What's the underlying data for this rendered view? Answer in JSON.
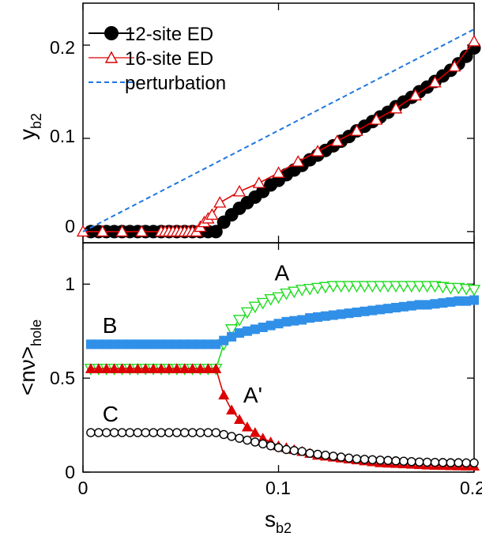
{
  "chart_data": [
    {
      "type": "line",
      "panel": "top",
      "ylabel": {
        "main": "y",
        "sub": "b2"
      },
      "xlim": [
        0,
        0.2
      ],
      "ylim": [
        -0.012,
        0.245
      ],
      "xticks": [
        0,
        0.1,
        0.2
      ],
      "yticks": [
        0,
        0.1,
        0.2
      ],
      "yticklabels": [
        "0",
        "0.1",
        "0.2"
      ],
      "legend_position": "top-left",
      "series": [
        {
          "name": "12-site ED",
          "color": "#000000",
          "marker": "filled-circle",
          "x": [
            0.004,
            0.008,
            0.012,
            0.016,
            0.02,
            0.024,
            0.028,
            0.032,
            0.036,
            0.04,
            0.044,
            0.048,
            0.052,
            0.056,
            0.06,
            0.064,
            0.068,
            0.072,
            0.076,
            0.08,
            0.084,
            0.088,
            0.092,
            0.096,
            0.1,
            0.104,
            0.108,
            0.112,
            0.116,
            0.12,
            0.124,
            0.128,
            0.132,
            0.136,
            0.14,
            0.144,
            0.148,
            0.152,
            0.156,
            0.16,
            0.164,
            0.168,
            0.172,
            0.176,
            0.18,
            0.184,
            0.188,
            0.192,
            0.196,
            0.2
          ],
          "y": [
            0.0,
            0.0,
            0.0,
            0.0,
            0.0,
            0.0,
            0.0,
            0.0,
            0.0,
            0.0,
            0.0,
            0.0,
            0.0,
            0.0,
            0.0,
            0.0,
            0.0,
            0.01,
            0.018,
            0.025,
            0.031,
            0.037,
            0.043,
            0.05,
            0.055,
            0.061,
            0.066,
            0.071,
            0.077,
            0.082,
            0.087,
            0.092,
            0.097,
            0.102,
            0.108,
            0.113,
            0.118,
            0.123,
            0.128,
            0.134,
            0.139,
            0.144,
            0.15,
            0.155,
            0.161,
            0.167,
            0.173,
            0.18,
            0.188,
            0.197
          ]
        },
        {
          "name": "16-site ED",
          "color": "#dd0000",
          "marker": "open-triangle",
          "x": [
            0.0,
            0.01,
            0.02,
            0.03,
            0.04,
            0.042,
            0.044,
            0.046,
            0.048,
            0.05,
            0.052,
            0.054,
            0.056,
            0.058,
            0.06,
            0.062,
            0.064,
            0.066,
            0.07,
            0.08,
            0.09,
            0.1,
            0.11,
            0.12,
            0.13,
            0.14,
            0.15,
            0.16,
            0.17,
            0.18,
            0.19,
            0.2
          ],
          "y": [
            0.0,
            0.0,
            0.0,
            0.0,
            0.0,
            0.0,
            0.0,
            0.0,
            0.0,
            0.0,
            0.0,
            0.0,
            0.0,
            0.0,
            0.005,
            0.01,
            0.014,
            0.018,
            0.031,
            0.043,
            0.052,
            0.063,
            0.075,
            0.086,
            0.097,
            0.108,
            0.12,
            0.132,
            0.146,
            0.16,
            0.177,
            0.204
          ]
        },
        {
          "name": "perturbation",
          "color": "#1f77e0",
          "style": "dashed",
          "x": [
            0.0,
            0.2
          ],
          "y": [
            0.0,
            0.217
          ]
        }
      ]
    },
    {
      "type": "line",
      "panel": "bottom",
      "ylabel": {
        "main": "<nν>",
        "sub": "hole"
      },
      "xlabel": {
        "main": "s",
        "sub": "b2"
      },
      "xlim": [
        0,
        0.2
      ],
      "ylim": [
        0,
        1.22
      ],
      "xticks": [
        0,
        0.1,
        0.2
      ],
      "xticklabels": [
        "0",
        "0.1",
        "0.2"
      ],
      "yticks": [
        0,
        0.5,
        1
      ],
      "yticklabels": [
        "0",
        "0.5",
        "1"
      ],
      "series": [
        {
          "color": "#22dd22",
          "marker": "open-triangle-down",
          "x": [
            0.004,
            0.008,
            0.012,
            0.016,
            0.02,
            0.024,
            0.028,
            0.032,
            0.036,
            0.04,
            0.044,
            0.048,
            0.052,
            0.056,
            0.06,
            0.064,
            0.068,
            0.072,
            0.076,
            0.08,
            0.084,
            0.088,
            0.092,
            0.096,
            0.1,
            0.104,
            0.108,
            0.112,
            0.116,
            0.12,
            0.124,
            0.128,
            0.132,
            0.136,
            0.14,
            0.144,
            0.148,
            0.152,
            0.156,
            0.16,
            0.164,
            0.168,
            0.172,
            0.176,
            0.18,
            0.184,
            0.188,
            0.192,
            0.196,
            0.2
          ],
          "y": [
            0.55,
            0.55,
            0.55,
            0.55,
            0.55,
            0.55,
            0.55,
            0.55,
            0.55,
            0.55,
            0.55,
            0.55,
            0.55,
            0.55,
            0.55,
            0.55,
            0.55,
            0.68,
            0.76,
            0.81,
            0.85,
            0.88,
            0.9,
            0.92,
            0.93,
            0.95,
            0.96,
            0.97,
            0.975,
            0.98,
            0.985,
            0.99,
            0.99,
            0.99,
            0.99,
            0.99,
            0.99,
            0.99,
            0.99,
            0.99,
            0.99,
            0.99,
            0.99,
            0.99,
            0.99,
            0.985,
            0.98,
            0.98,
            0.975,
            0.97
          ]
        },
        {
          "color": "#dd0000",
          "marker": "filled-triangle",
          "x": [
            0.004,
            0.008,
            0.012,
            0.016,
            0.02,
            0.024,
            0.028,
            0.032,
            0.036,
            0.04,
            0.044,
            0.048,
            0.052,
            0.056,
            0.06,
            0.064,
            0.068,
            0.072,
            0.076,
            0.08,
            0.084,
            0.088,
            0.092,
            0.096,
            0.1,
            0.104,
            0.108,
            0.112,
            0.116,
            0.12,
            0.124,
            0.128,
            0.132,
            0.136,
            0.14,
            0.144,
            0.148,
            0.152,
            0.156,
            0.16,
            0.164,
            0.168,
            0.172,
            0.176,
            0.18,
            0.184,
            0.188,
            0.192,
            0.196,
            0.2
          ],
          "y": [
            0.55,
            0.55,
            0.55,
            0.55,
            0.55,
            0.55,
            0.55,
            0.55,
            0.55,
            0.55,
            0.55,
            0.55,
            0.55,
            0.55,
            0.55,
            0.55,
            0.55,
            0.41,
            0.33,
            0.28,
            0.24,
            0.21,
            0.18,
            0.16,
            0.14,
            0.13,
            0.12,
            0.11,
            0.1,
            0.09,
            0.085,
            0.08,
            0.075,
            0.07,
            0.065,
            0.06,
            0.055,
            0.05,
            0.048,
            0.046,
            0.044,
            0.042,
            0.04,
            0.038,
            0.036,
            0.035,
            0.034,
            0.033,
            0.032,
            0.032
          ]
        },
        {
          "color": "#3090e8",
          "marker": "filled-square",
          "x": [
            0.004,
            0.008,
            0.012,
            0.016,
            0.02,
            0.024,
            0.028,
            0.032,
            0.036,
            0.04,
            0.044,
            0.048,
            0.052,
            0.056,
            0.06,
            0.064,
            0.068,
            0.072,
            0.076,
            0.08,
            0.084,
            0.088,
            0.092,
            0.096,
            0.1,
            0.104,
            0.108,
            0.112,
            0.116,
            0.12,
            0.124,
            0.128,
            0.132,
            0.136,
            0.14,
            0.144,
            0.148,
            0.152,
            0.156,
            0.16,
            0.164,
            0.168,
            0.172,
            0.176,
            0.18,
            0.184,
            0.188,
            0.192,
            0.196,
            0.2
          ],
          "y": [
            0.68,
            0.68,
            0.68,
            0.68,
            0.68,
            0.68,
            0.68,
            0.68,
            0.68,
            0.68,
            0.68,
            0.68,
            0.68,
            0.68,
            0.68,
            0.68,
            0.68,
            0.7,
            0.72,
            0.74,
            0.75,
            0.76,
            0.77,
            0.78,
            0.79,
            0.8,
            0.805,
            0.81,
            0.82,
            0.825,
            0.83,
            0.835,
            0.84,
            0.845,
            0.85,
            0.855,
            0.86,
            0.865,
            0.87,
            0.875,
            0.88,
            0.885,
            0.89,
            0.89,
            0.895,
            0.9,
            0.905,
            0.91,
            0.91,
            0.915
          ]
        },
        {
          "color": "#000000",
          "marker": "open-circle",
          "x": [
            0.004,
            0.008,
            0.012,
            0.016,
            0.02,
            0.024,
            0.028,
            0.032,
            0.036,
            0.04,
            0.044,
            0.048,
            0.052,
            0.056,
            0.06,
            0.064,
            0.068,
            0.072,
            0.076,
            0.08,
            0.084,
            0.088,
            0.092,
            0.096,
            0.1,
            0.104,
            0.108,
            0.112,
            0.116,
            0.12,
            0.124,
            0.128,
            0.132,
            0.136,
            0.14,
            0.144,
            0.148,
            0.152,
            0.156,
            0.16,
            0.164,
            0.168,
            0.172,
            0.176,
            0.18,
            0.184,
            0.188,
            0.192,
            0.196,
            0.2
          ],
          "y": [
            0.21,
            0.21,
            0.21,
            0.21,
            0.21,
            0.21,
            0.21,
            0.21,
            0.21,
            0.21,
            0.21,
            0.21,
            0.21,
            0.21,
            0.21,
            0.21,
            0.21,
            0.2,
            0.19,
            0.18,
            0.17,
            0.16,
            0.15,
            0.14,
            0.13,
            0.12,
            0.115,
            0.11,
            0.1,
            0.095,
            0.09,
            0.085,
            0.08,
            0.075,
            0.07,
            0.068,
            0.066,
            0.064,
            0.062,
            0.06,
            0.058,
            0.056,
            0.054,
            0.053,
            0.052,
            0.051,
            0.05,
            0.05,
            0.049,
            0.049
          ]
        }
      ],
      "annotations": [
        {
          "text": "A",
          "x": 0.098,
          "y": 1.02
        },
        {
          "text": "B",
          "x": 0.01,
          "y": 0.74
        },
        {
          "text": "A'",
          "x": 0.082,
          "y": 0.37
        },
        {
          "text": "C",
          "x": 0.01,
          "y": 0.27
        }
      ]
    }
  ]
}
